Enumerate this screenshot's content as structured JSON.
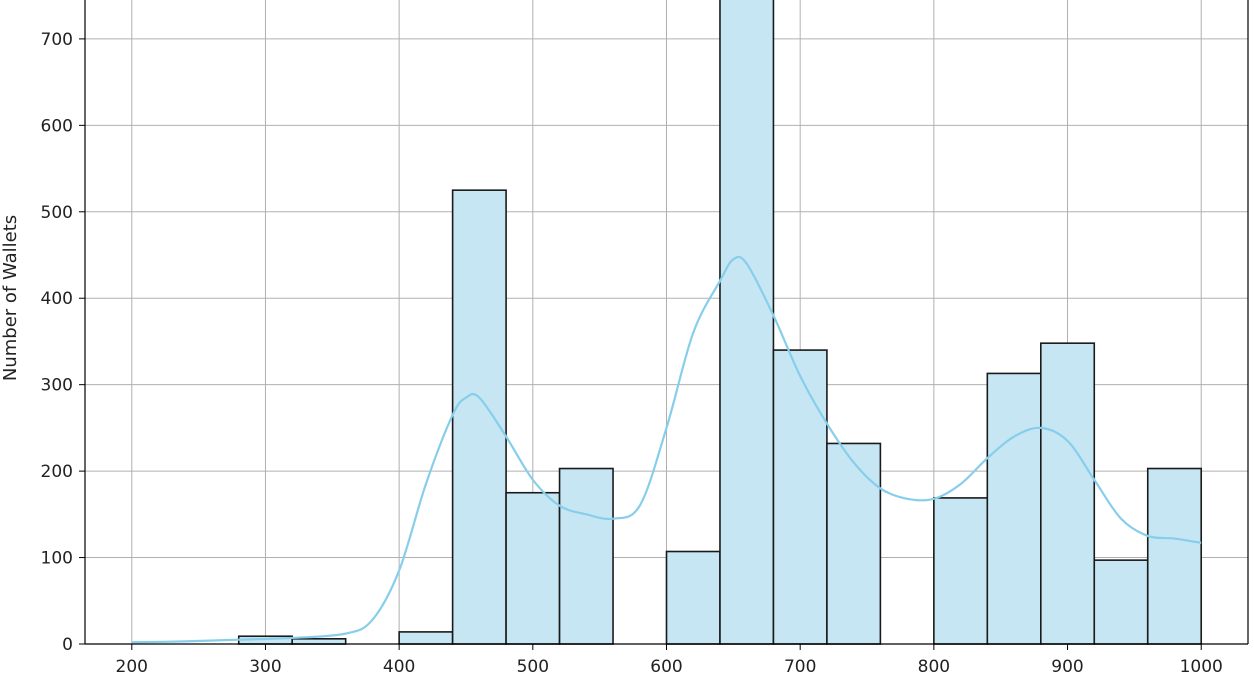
{
  "chart_data": {
    "type": "bar",
    "subtype": "histogram-with-kde",
    "title": "",
    "xlabel": "",
    "ylabel": "Number of Wallets",
    "xlim": [
      165,
      1035
    ],
    "ylim": [
      0,
      745
    ],
    "xticks": [
      200,
      300,
      400,
      500,
      600,
      700,
      800,
      900,
      1000
    ],
    "yticks": [
      0,
      100,
      200,
      300,
      400,
      500,
      600,
      700
    ],
    "grid": true,
    "colors": {
      "bar_fill": "#c6e6f4",
      "bar_edge": "#1a1a1a",
      "kde_line": "#87ceeb",
      "grid": "#b0b0b0"
    },
    "bin_width": 40,
    "bins": [
      {
        "start": 200,
        "end": 240,
        "count": 0
      },
      {
        "start": 240,
        "end": 280,
        "count": 0
      },
      {
        "start": 280,
        "end": 320,
        "count": 9
      },
      {
        "start": 320,
        "end": 360,
        "count": 6
      },
      {
        "start": 360,
        "end": 400,
        "count": 0
      },
      {
        "start": 400,
        "end": 440,
        "count": 14
      },
      {
        "start": 440,
        "end": 480,
        "count": 525
      },
      {
        "start": 480,
        "end": 520,
        "count": 175
      },
      {
        "start": 520,
        "end": 560,
        "count": 203
      },
      {
        "start": 560,
        "end": 600,
        "count": 0
      },
      {
        "start": 600,
        "end": 640,
        "count": 107
      },
      {
        "start": 640,
        "end": 680,
        "count": 760
      },
      {
        "start": 680,
        "end": 720,
        "count": 340
      },
      {
        "start": 720,
        "end": 760,
        "count": 232
      },
      {
        "start": 760,
        "end": 800,
        "count": 0
      },
      {
        "start": 800,
        "end": 840,
        "count": 169
      },
      {
        "start": 840,
        "end": 880,
        "count": 313
      },
      {
        "start": 880,
        "end": 920,
        "count": 348
      },
      {
        "start": 920,
        "end": 960,
        "count": 97
      },
      {
        "start": 960,
        "end": 1000,
        "count": 203
      }
    ],
    "kde": {
      "x": [
        200,
        240,
        280,
        320,
        360,
        380,
        400,
        420,
        440,
        450,
        460,
        480,
        500,
        520,
        540,
        560,
        580,
        600,
        620,
        640,
        650,
        660,
        680,
        700,
        720,
        740,
        760,
        780,
        800,
        820,
        840,
        860,
        880,
        900,
        920,
        940,
        960,
        980,
        1000
      ],
      "y": [
        2,
        3,
        5,
        7,
        12,
        28,
        85,
        185,
        265,
        285,
        285,
        240,
        190,
        160,
        150,
        145,
        160,
        250,
        360,
        420,
        445,
        440,
        380,
        310,
        255,
        210,
        180,
        168,
        168,
        185,
        215,
        240,
        250,
        235,
        190,
        145,
        125,
        122,
        117
      ]
    }
  }
}
